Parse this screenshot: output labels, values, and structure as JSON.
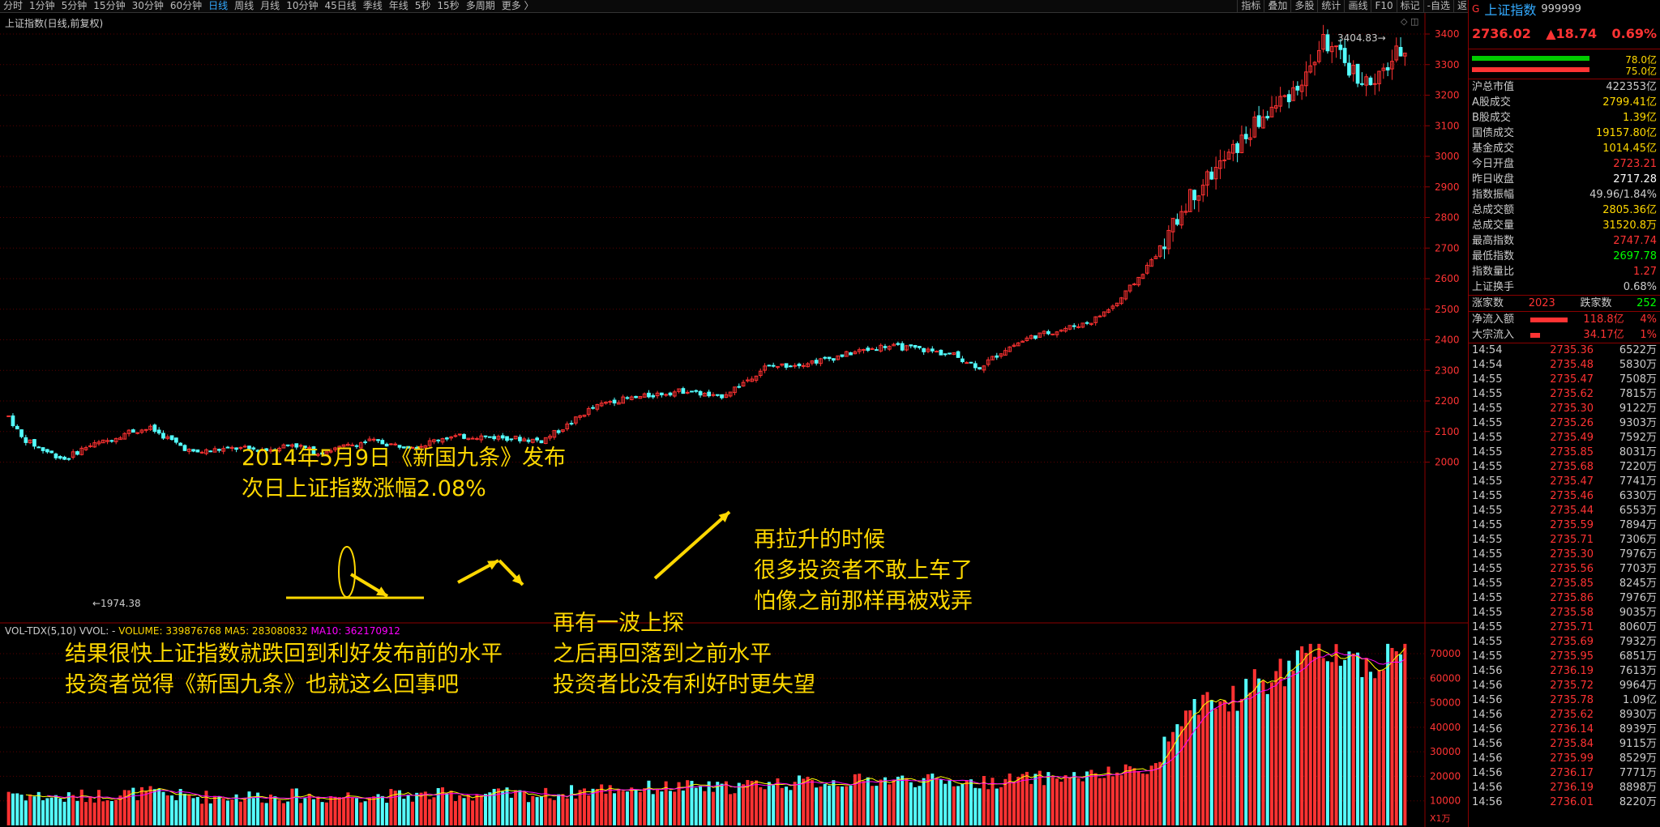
{
  "toolbar": {
    "periods": [
      "分时",
      "1分钟",
      "5分钟",
      "15分钟",
      "30分钟",
      "60分钟",
      "日线",
      "周线",
      "月线",
      "10分钟",
      "45日线",
      "季线",
      "年线",
      "5秒",
      "15秒",
      "多周期",
      "更多 〉"
    ],
    "active": "日线",
    "right": [
      "指标",
      "叠加",
      "多股",
      "统计",
      "画线",
      "F10",
      "标记",
      "-自选",
      "返回"
    ]
  },
  "chart": {
    "title": "上证指数(日线,前复权)",
    "high_label": "3404.83",
    "low_label": "←1974.38",
    "yticks": [
      "3400",
      "3300",
      "3200",
      "3100",
      "3000",
      "2900",
      "2800",
      "2700",
      "2600",
      "2500",
      "2400",
      "2300",
      "2200",
      "2100",
      "2000"
    ],
    "vol_indicator": "VOL-TDX(5,10)",
    "vol_vvol": "VVOL: -",
    "vol_volume": "VOLUME: 339876768",
    "vol_ma5": "MA5: 283080832",
    "vol_ma10": "MA10: 362170912",
    "vol_yticks": [
      "70000",
      "60000",
      "50000",
      "40000",
      "30000",
      "20000",
      "10000"
    ],
    "vol_unit": "X1万",
    "colors": {
      "up": "#ff3232",
      "down": "#54ffff",
      "ma5": "#ffff00",
      "ma10": "#ff00ff",
      "annot": "#ffd800"
    }
  },
  "annotations": {
    "a1_line1": "2014年5月9日《新国九条》发布",
    "a1_line2": "次日上证指数涨幅2.08%",
    "a2_line1": "结果很快上证指数就跌回到利好发布前的水平",
    "a2_line2": "投资者觉得《新国九条》也就这么回事吧",
    "a3_line1": "再有一波上探",
    "a3_line2": "之后再回落到之前水平",
    "a3_line3": "投资者比没有利好时更失望",
    "a4_line1": "再拉升的时候",
    "a4_line2": "很多投资者不敢上车了",
    "a4_line3": "怕像之前那样再被戏弄"
  },
  "side": {
    "code_badge": "G",
    "name": "上证指数",
    "code": "999999",
    "price": "2736.02",
    "change": "▲18.74",
    "change_pct": "0.69%",
    "bar1_val": "78.0亿",
    "bar2_val": "75.0亿",
    "stats": [
      {
        "label": "沪总市值",
        "value": "422353亿",
        "color": "#ccc"
      },
      {
        "label": "A股成交",
        "value": "2799.41亿",
        "color": "#ffd800"
      },
      {
        "label": "B股成交",
        "value": "1.39亿",
        "color": "#ffd800"
      },
      {
        "label": "国债成交",
        "value": "19157.80亿",
        "color": "#ffd800"
      },
      {
        "label": "基金成交",
        "value": "1014.45亿",
        "color": "#ffd800"
      },
      {
        "label": "今日开盘",
        "value": "2723.21",
        "color": "#f33"
      },
      {
        "label": "昨日收盘",
        "value": "2717.28",
        "color": "#fff"
      },
      {
        "label": "指数振幅",
        "value": "49.96/1.84%",
        "color": "#ccc"
      },
      {
        "label": "总成交额",
        "value": "2805.36亿",
        "color": "#ffd800"
      },
      {
        "label": "总成交量",
        "value": "31520.8万",
        "color": "#ffd800"
      },
      {
        "label": "最高指数",
        "value": "2747.74",
        "color": "#f33"
      },
      {
        "label": "最低指数",
        "value": "2697.78",
        "color": "#0f0"
      },
      {
        "label": "指数量比",
        "value": "1.27",
        "color": "#f33"
      },
      {
        "label": "上证换手",
        "value": "0.68%",
        "color": "#ccc"
      }
    ],
    "up_label": "涨家数",
    "up_count": "2023",
    "down_label": "跌家数",
    "down_count": "252",
    "inflow_label": "净流入额",
    "inflow_value": "118.8亿",
    "inflow_pct": "4%",
    "block_label": "大宗流入",
    "block_value": "34.17亿",
    "block_pct": "1%",
    "ticks": [
      [
        "14:54",
        "2735.36",
        "6522万"
      ],
      [
        "14:54",
        "2735.48",
        "5830万"
      ],
      [
        "14:55",
        "2735.47",
        "7508万"
      ],
      [
        "14:55",
        "2735.62",
        "7815万"
      ],
      [
        "14:55",
        "2735.30",
        "9122万"
      ],
      [
        "14:55",
        "2735.26",
        "9303万"
      ],
      [
        "14:55",
        "2735.49",
        "7592万"
      ],
      [
        "14:55",
        "2735.85",
        "8031万"
      ],
      [
        "14:55",
        "2735.68",
        "7220万"
      ],
      [
        "14:55",
        "2735.47",
        "7741万"
      ],
      [
        "14:55",
        "2735.46",
        "6330万"
      ],
      [
        "14:55",
        "2735.44",
        "6553万"
      ],
      [
        "14:55",
        "2735.59",
        "7894万"
      ],
      [
        "14:55",
        "2735.71",
        "7306万"
      ],
      [
        "14:55",
        "2735.30",
        "7976万"
      ],
      [
        "14:55",
        "2735.56",
        "7703万"
      ],
      [
        "14:55",
        "2735.85",
        "8245万"
      ],
      [
        "14:55",
        "2735.86",
        "7976万"
      ],
      [
        "14:55",
        "2735.58",
        "9035万"
      ],
      [
        "14:55",
        "2735.71",
        "8060万"
      ],
      [
        "14:55",
        "2735.69",
        "7932万"
      ],
      [
        "14:55",
        "2735.95",
        "6851万"
      ],
      [
        "14:56",
        "2736.19",
        "7613万"
      ],
      [
        "14:56",
        "2735.72",
        "9964万"
      ],
      [
        "14:56",
        "2735.78",
        "1.09亿"
      ],
      [
        "14:56",
        "2735.62",
        "8930万"
      ],
      [
        "14:56",
        "2736.14",
        "8939万"
      ],
      [
        "14:56",
        "2735.84",
        "9115万"
      ],
      [
        "14:56",
        "2735.99",
        "8529万"
      ],
      [
        "14:56",
        "2736.17",
        "7771万"
      ],
      [
        "14:56",
        "2736.19",
        "8898万"
      ],
      [
        "14:56",
        "2736.01",
        "8220万"
      ]
    ]
  }
}
